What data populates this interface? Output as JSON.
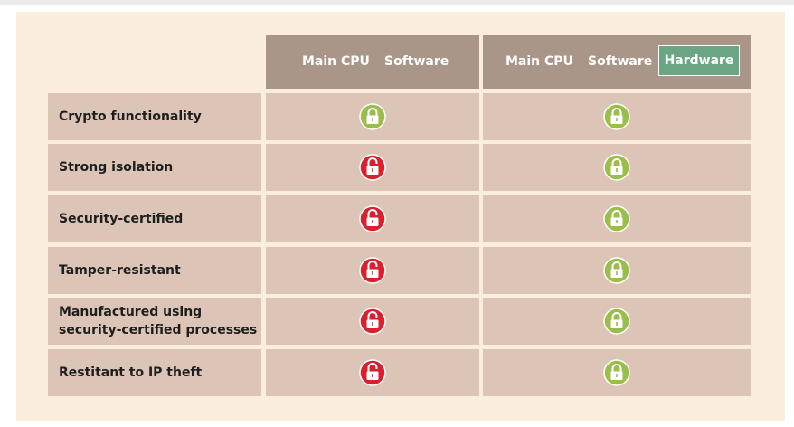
{
  "colors": {
    "panel_bg": "#fbeedf",
    "header_bg": "#a99689",
    "cell_bg": "#dcc5b6",
    "hardware_badge": "#6aa683",
    "locked_green": "#9bbd4c",
    "unlocked_red": "#d8202e"
  },
  "header": {
    "software_group": {
      "main_cpu": "Main CPU",
      "software": "Software"
    },
    "hardware_group": {
      "main_cpu": "Main CPU",
      "software": "Software",
      "hardware": "Hardware"
    }
  },
  "rows": [
    {
      "label": "Crypto functionality",
      "software_icon": "green-locked-padlock-icon",
      "hardware_icon": "green-locked-padlock-icon"
    },
    {
      "label": "Strong isolation",
      "software_icon": "red-unlocked-padlock-icon",
      "hardware_icon": "green-locked-padlock-icon"
    },
    {
      "label": "Security-certified",
      "software_icon": "red-unlocked-padlock-icon",
      "hardware_icon": "green-locked-padlock-icon"
    },
    {
      "label": "Tamper-resistant",
      "software_icon": "red-unlocked-padlock-icon",
      "hardware_icon": "green-locked-padlock-icon"
    },
    {
      "label": "Manufactured using\nsecurity-certified processes",
      "software_icon": "red-unlocked-padlock-icon",
      "hardware_icon": "green-locked-padlock-icon"
    },
    {
      "label": "Restitant to IP theft",
      "software_icon": "red-unlocked-padlock-icon",
      "hardware_icon": "green-locked-padlock-icon"
    }
  ]
}
